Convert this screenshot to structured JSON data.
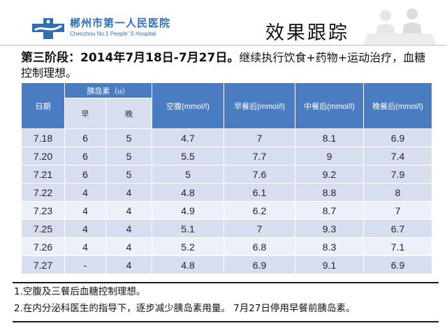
{
  "header": {
    "hospital_name": "郴州市第一人民医院",
    "hospital_name_en": "Chenzhou No.1 People' S Hospital",
    "slide_title": "效果跟踪",
    "brand_color": "#2f6fb5",
    "logo_icon": "hospital-cross-logo-icon"
  },
  "stage": {
    "headline": "第三阶段：2014年7月18日-7月27日。",
    "detail": "继续执行饮食+药物+运动治疗，血糖控制理想。"
  },
  "table": {
    "headers": {
      "date": "日期",
      "insulin": "胰岛素（u）",
      "morning": "早",
      "evening": "晚",
      "fasting": "空腹(mmol/l)",
      "after_breakfast": "早餐后(mmol/l)",
      "after_lunch": "中餐后(mmol/l)",
      "after_dinner": "晚餐后(mmol/l)"
    },
    "header_color": "#4a7cc2",
    "rows": [
      {
        "date": "7.18",
        "insulin_am": "6",
        "insulin_pm": "5",
        "fasting": "4.7",
        "breakfast": "7",
        "lunch": "8.1",
        "dinner": "6.9"
      },
      {
        "date": "7.20",
        "insulin_am": "6",
        "insulin_pm": "5",
        "fasting": "5.5",
        "breakfast": "7.7",
        "lunch": "9",
        "dinner": "7.4"
      },
      {
        "date": "7.21",
        "insulin_am": "6",
        "insulin_pm": "5",
        "fasting": "5",
        "breakfast": "7.6",
        "lunch": "9.2",
        "dinner": "7.9"
      },
      {
        "date": "7.22",
        "insulin_am": "4",
        "insulin_pm": "4",
        "fasting": "4.8",
        "breakfast": "6.1",
        "lunch": "8.8",
        "dinner": "8"
      },
      {
        "date": "7.23",
        "insulin_am": "4",
        "insulin_pm": "4",
        "fasting": "4.9",
        "breakfast": "6.2",
        "lunch": "8.7",
        "dinner": "7"
      },
      {
        "date": "7.25",
        "insulin_am": "4",
        "insulin_pm": "4",
        "fasting": "5.1",
        "breakfast": "7",
        "lunch": "9.3",
        "dinner": "6.7"
      },
      {
        "date": "7.26",
        "insulin_am": "4",
        "insulin_pm": "4",
        "fasting": "5.2",
        "breakfast": "6.8",
        "lunch": "8.3",
        "dinner": "7.1"
      },
      {
        "date": "7.27",
        "insulin_am": "-",
        "insulin_pm": "4",
        "fasting": "4.8",
        "breakfast": "6.9",
        "lunch": "9.1",
        "dinner": "6.9"
      }
    ]
  },
  "notes": [
    "1.空腹及三餐后血糖控制理想。",
    "2.在内分泌科医生的指导下，逐步减少胰岛素用量。 7月27日停用早餐前胰岛素。"
  ]
}
